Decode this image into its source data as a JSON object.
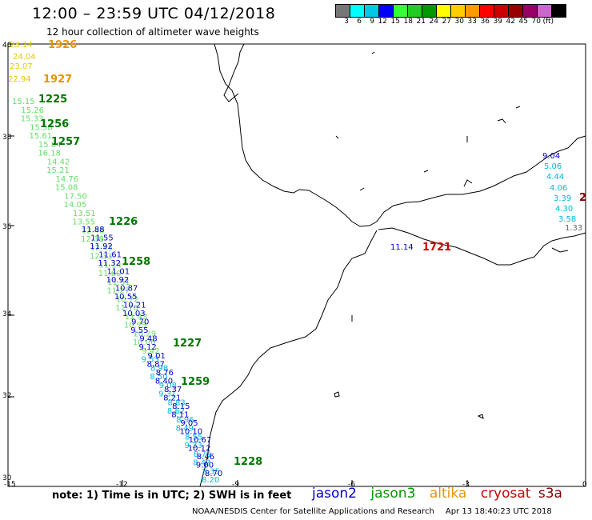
{
  "title": "12:00 – 23:59 UTC 04/12/2018",
  "subtitle": "12 hour collection of altimeter wave heights",
  "colorbar": {
    "colors": [
      "#777777",
      "#00ffff",
      "#00c8e6",
      "#0000ff",
      "#33ff33",
      "#22cc22",
      "#009900",
      "#ffff00",
      "#ffcc00",
      "#ff9900",
      "#ff0000",
      "#cc0000",
      "#990000",
      "#990066",
      "#cc66cc",
      "#000000"
    ],
    "labels": [
      "3",
      "6",
      "9",
      "12",
      "15",
      "18",
      "21",
      "24",
      "27",
      "30",
      "33",
      "36",
      "39",
      "42",
      "45",
      "70",
      "(ft)"
    ]
  },
  "axes": {
    "lat_labels": [
      "40",
      "38",
      "36",
      "34",
      "32",
      "30"
    ],
    "lon_labels": [
      "-15",
      "-12",
      "-9",
      "-6",
      "-3",
      "0"
    ]
  },
  "track_labels": {
    "jason3": [
      "1225",
      "1256",
      "1257",
      "1226",
      "1258",
      "1227",
      "1259",
      "1228"
    ],
    "altika": [
      "1926",
      "1927"
    ],
    "cryosat": [
      "1721"
    ],
    "s3a": [
      "2"
    ]
  },
  "jason3_values": [
    "15.15",
    "15.26",
    "15.33",
    "15.58",
    "15.61",
    "15.84",
    "16.18",
    "14.42",
    "15.21",
    "14.76",
    "15.08",
    "17.50",
    "14.05",
    "13.51",
    "13.55",
    "12.48",
    "12.38",
    "12.45",
    "12.33",
    "11.14",
    "11.60",
    "11.51",
    "11.27",
    "10.72",
    "11.76",
    "11.43",
    "10.75",
    "10.29",
    "10.06",
    "9.42",
    "9.53",
    "8.98",
    "8.50",
    "9.08",
    "9.31",
    "8.83",
    "8.62",
    "8.96",
    "8.49",
    "8.55",
    "9.33",
    "8.79",
    "8.42",
    "8.35",
    "8.20"
  ],
  "jason2_values": [
    "11.88",
    "11.55",
    "11.92",
    "11.61",
    "11.32",
    "11.01",
    "10.92",
    "10.87",
    "10.55",
    "10.21",
    "10.03",
    "9.70",
    "9.55",
    "9.48",
    "9.12",
    "9.01",
    "8.87",
    "8.76",
    "8.40",
    "8.37",
    "8.21",
    "8.15",
    "8.11",
    "9.05",
    "10.10",
    "10.67",
    "10.12",
    "8.46",
    "9.00",
    "8.70"
  ],
  "altika_values": [
    "23.14",
    "24.04",
    "23.07",
    "22.94"
  ],
  "med_cyan_values": [
    "5.06",
    "4.44",
    "4.06",
    "3.39",
    "4.30",
    "3.58"
  ],
  "med_jason2_values": [
    "11.14",
    "9.04"
  ],
  "med_gray_value": "1.33",
  "note": "note:  1) Time is in UTC;  2) SWH is in feet",
  "legend": {
    "jason2": "jason2",
    "jason3": "jason3",
    "altika": "altika",
    "cryosat": "cryosat",
    "s3a": "s3a"
  },
  "footer": {
    "org": "NOAA/NESDIS Center for Satellite Applications and Research",
    "timestamp": "Apr 13 18:40:23 UTC 2018"
  },
  "colors": {
    "jason2": "#0000cc",
    "jason3": "#007700",
    "altika": "#e69500",
    "cryosat": "#cc0000",
    "s3a": "#880000",
    "light_green": "#66dd66",
    "cyan": "#00bbdd"
  }
}
